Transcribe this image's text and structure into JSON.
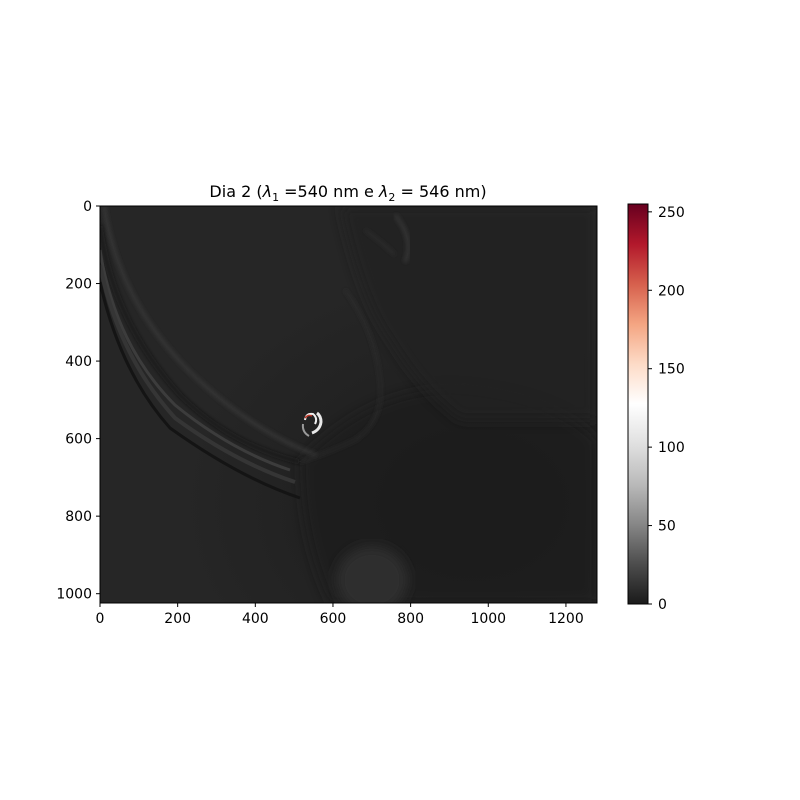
{
  "chart_data": {
    "type": "heatmap",
    "title": {
      "prefix": "Dia 2 (",
      "lambda": "λ",
      "sub1": "1",
      "mid": " =540 nm e ",
      "sub2": "2",
      "suffix": " = 546 nm)"
    },
    "xlabel": "",
    "ylabel": "",
    "x_range": [
      0,
      1280
    ],
    "y_range": [
      1024,
      0
    ],
    "x_ticks": [
      {
        "value": 0,
        "label": "0"
      },
      {
        "value": 200,
        "label": "200"
      },
      {
        "value": 400,
        "label": "400"
      },
      {
        "value": 600,
        "label": "600"
      },
      {
        "value": 800,
        "label": "800"
      },
      {
        "value": 1000,
        "label": "1000"
      },
      {
        "value": 1200,
        "label": "1200"
      }
    ],
    "y_ticks": [
      {
        "value": 0,
        "label": "0"
      },
      {
        "value": 200,
        "label": "200"
      },
      {
        "value": 400,
        "label": "400"
      },
      {
        "value": 600,
        "label": "600"
      },
      {
        "value": 800,
        "label": "800"
      },
      {
        "value": 1000,
        "label": "1000"
      }
    ],
    "colorbar": {
      "range": [
        0,
        255
      ],
      "colormap": "RdGy_r",
      "ticks": [
        {
          "value": 0,
          "label": "0"
        },
        {
          "value": 50,
          "label": "50"
        },
        {
          "value": 100,
          "label": "100"
        },
        {
          "value": 150,
          "label": "150"
        },
        {
          "value": 200,
          "label": "200"
        },
        {
          "value": 250,
          "label": "250"
        }
      ]
    },
    "background_value": 30,
    "grid": false
  }
}
